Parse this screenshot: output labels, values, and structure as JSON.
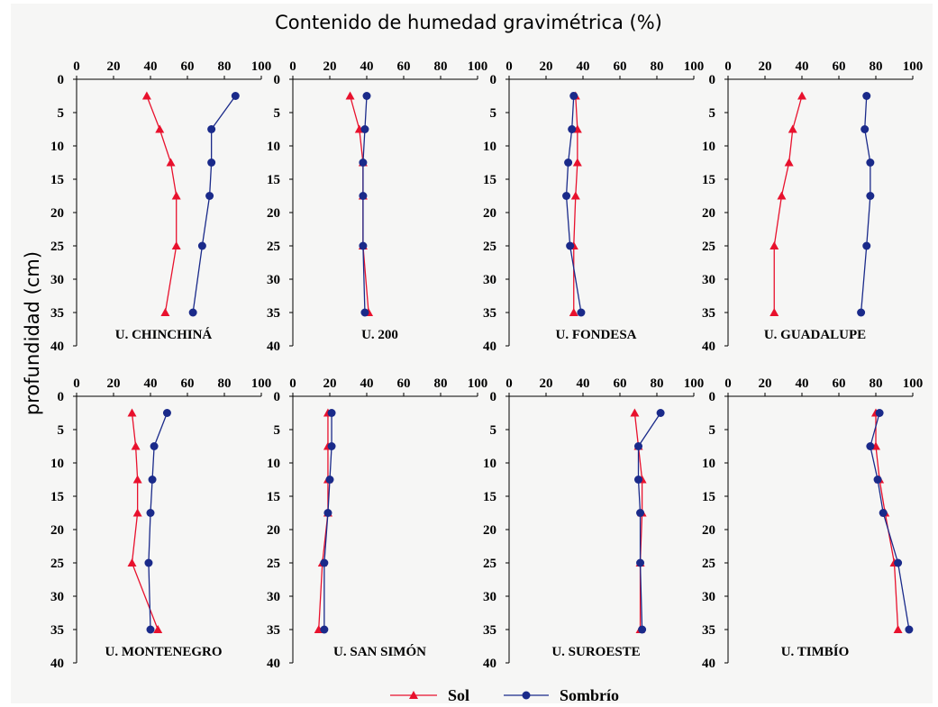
{
  "figure": {
    "title": "Contenido de humedad gravimétrica (%)",
    "ylabel": "profundidad (cm)"
  },
  "legend": {
    "placement": "bottom-center",
    "entries": [
      {
        "name": "Sol",
        "color": "#e8112d",
        "marker": "triangle"
      },
      {
        "name": "Sombrío",
        "color": "#1a2a8a",
        "marker": "circle"
      }
    ]
  },
  "chart_data": [
    {
      "type": "line",
      "title": "U. CHINCHINÁ",
      "xlim": [
        0,
        100
      ],
      "ylim": [
        0,
        40
      ],
      "y_inverted": true,
      "xticks": [
        0,
        20,
        40,
        60,
        80,
        100
      ],
      "yticks": [
        0,
        5,
        10,
        15,
        20,
        25,
        30,
        35,
        40
      ],
      "y": [
        2.5,
        7.5,
        12.5,
        17.5,
        25,
        35
      ],
      "series": [
        {
          "name": "Sol",
          "x": [
            38,
            45,
            51,
            54,
            54,
            48
          ]
        },
        {
          "name": "Sombrío",
          "x": [
            86,
            73,
            73,
            72,
            68,
            63
          ]
        }
      ]
    },
    {
      "type": "line",
      "title": "U. 200",
      "xlim": [
        0,
        100
      ],
      "ylim": [
        0,
        40
      ],
      "y_inverted": true,
      "xticks": [
        0,
        20,
        40,
        60,
        80,
        100
      ],
      "yticks": [
        0,
        5,
        10,
        15,
        20,
        25,
        30,
        35,
        40
      ],
      "y": [
        2.5,
        7.5,
        12.5,
        17.5,
        25,
        35
      ],
      "series": [
        {
          "name": "Sol",
          "x": [
            31,
            36,
            38,
            38,
            38,
            41
          ]
        },
        {
          "name": "Sombrío",
          "x": [
            40,
            39,
            38,
            38,
            38,
            39
          ]
        }
      ]
    },
    {
      "type": "line",
      "title": "U. FONDESA",
      "xlim": [
        0,
        100
      ],
      "ylim": [
        0,
        40
      ],
      "y_inverted": true,
      "xticks": [
        0,
        20,
        40,
        60,
        80,
        100
      ],
      "yticks": [
        0,
        5,
        10,
        15,
        20,
        25,
        30,
        35,
        40
      ],
      "y": [
        2.5,
        7.5,
        12.5,
        17.5,
        25,
        35
      ],
      "series": [
        {
          "name": "Sol",
          "x": [
            36,
            37,
            37,
            36,
            35,
            35
          ]
        },
        {
          "name": "Sombrío",
          "x": [
            35,
            34,
            32,
            31,
            33,
            39
          ]
        }
      ]
    },
    {
      "type": "line",
      "title": "U. GUADALUPE",
      "xlim": [
        0,
        100
      ],
      "ylim": [
        0,
        40
      ],
      "y_inverted": true,
      "xticks": [
        0,
        20,
        40,
        60,
        80,
        100
      ],
      "yticks": [
        0,
        5,
        10,
        15,
        20,
        25,
        30,
        35,
        40
      ],
      "y": [
        2.5,
        7.5,
        12.5,
        17.5,
        25,
        35
      ],
      "series": [
        {
          "name": "Sol",
          "x": [
            40,
            35,
            33,
            29,
            25,
            25
          ]
        },
        {
          "name": "Sombrío",
          "x": [
            75,
            74,
            77,
            77,
            75,
            72
          ]
        }
      ]
    },
    {
      "type": "line",
      "title": "U. MONTENEGRO",
      "xlim": [
        0,
        100
      ],
      "ylim": [
        0,
        40
      ],
      "y_inverted": true,
      "xticks": [
        0,
        20,
        40,
        60,
        80,
        100
      ],
      "yticks": [
        0,
        5,
        10,
        15,
        20,
        25,
        30,
        35,
        40
      ],
      "y": [
        2.5,
        7.5,
        12.5,
        17.5,
        25,
        35
      ],
      "series": [
        {
          "name": "Sol",
          "x": [
            30,
            32,
            33,
            33,
            30,
            44
          ]
        },
        {
          "name": "Sombrío",
          "x": [
            49,
            42,
            41,
            40,
            39,
            40
          ]
        }
      ]
    },
    {
      "type": "line",
      "title": "U. SAN SIMÓN",
      "xlim": [
        0,
        100
      ],
      "ylim": [
        0,
        40
      ],
      "y_inverted": true,
      "xticks": [
        0,
        20,
        40,
        60,
        80,
        100
      ],
      "yticks": [
        0,
        5,
        10,
        15,
        20,
        25,
        30,
        35,
        40
      ],
      "y": [
        2.5,
        7.5,
        12.5,
        17.5,
        25,
        35
      ],
      "series": [
        {
          "name": "Sol",
          "x": [
            19,
            19,
            19,
            19,
            16,
            14
          ]
        },
        {
          "name": "Sombrío",
          "x": [
            21,
            21,
            20,
            19,
            17,
            17
          ]
        }
      ]
    },
    {
      "type": "line",
      "title": "U. SUROESTE",
      "xlim": [
        0,
        100
      ],
      "ylim": [
        0,
        40
      ],
      "y_inverted": true,
      "xticks": [
        0,
        20,
        40,
        60,
        80,
        100
      ],
      "yticks": [
        0,
        5,
        10,
        15,
        20,
        25,
        30,
        35,
        40
      ],
      "y": [
        2.5,
        7.5,
        12.5,
        17.5,
        25,
        35
      ],
      "series": [
        {
          "name": "Sol",
          "x": [
            68,
            70,
            72,
            72,
            71,
            71
          ]
        },
        {
          "name": "Sombrío",
          "x": [
            82,
            70,
            70,
            71,
            71,
            72
          ]
        }
      ]
    },
    {
      "type": "line",
      "title": "U. TIMBÍO",
      "xlim": [
        0,
        100
      ],
      "ylim": [
        0,
        40
      ],
      "y_inverted": true,
      "xticks": [
        0,
        20,
        40,
        60,
        80,
        100
      ],
      "yticks": [
        0,
        5,
        10,
        15,
        20,
        25,
        30,
        35,
        40
      ],
      "y": [
        2.5,
        7.5,
        12.5,
        17.5,
        25,
        35
      ],
      "series": [
        {
          "name": "Sol",
          "x": [
            80,
            80,
            82,
            85,
            90,
            92
          ]
        },
        {
          "name": "Sombrío",
          "x": [
            82,
            77,
            81,
            84,
            92,
            98
          ]
        }
      ]
    }
  ]
}
